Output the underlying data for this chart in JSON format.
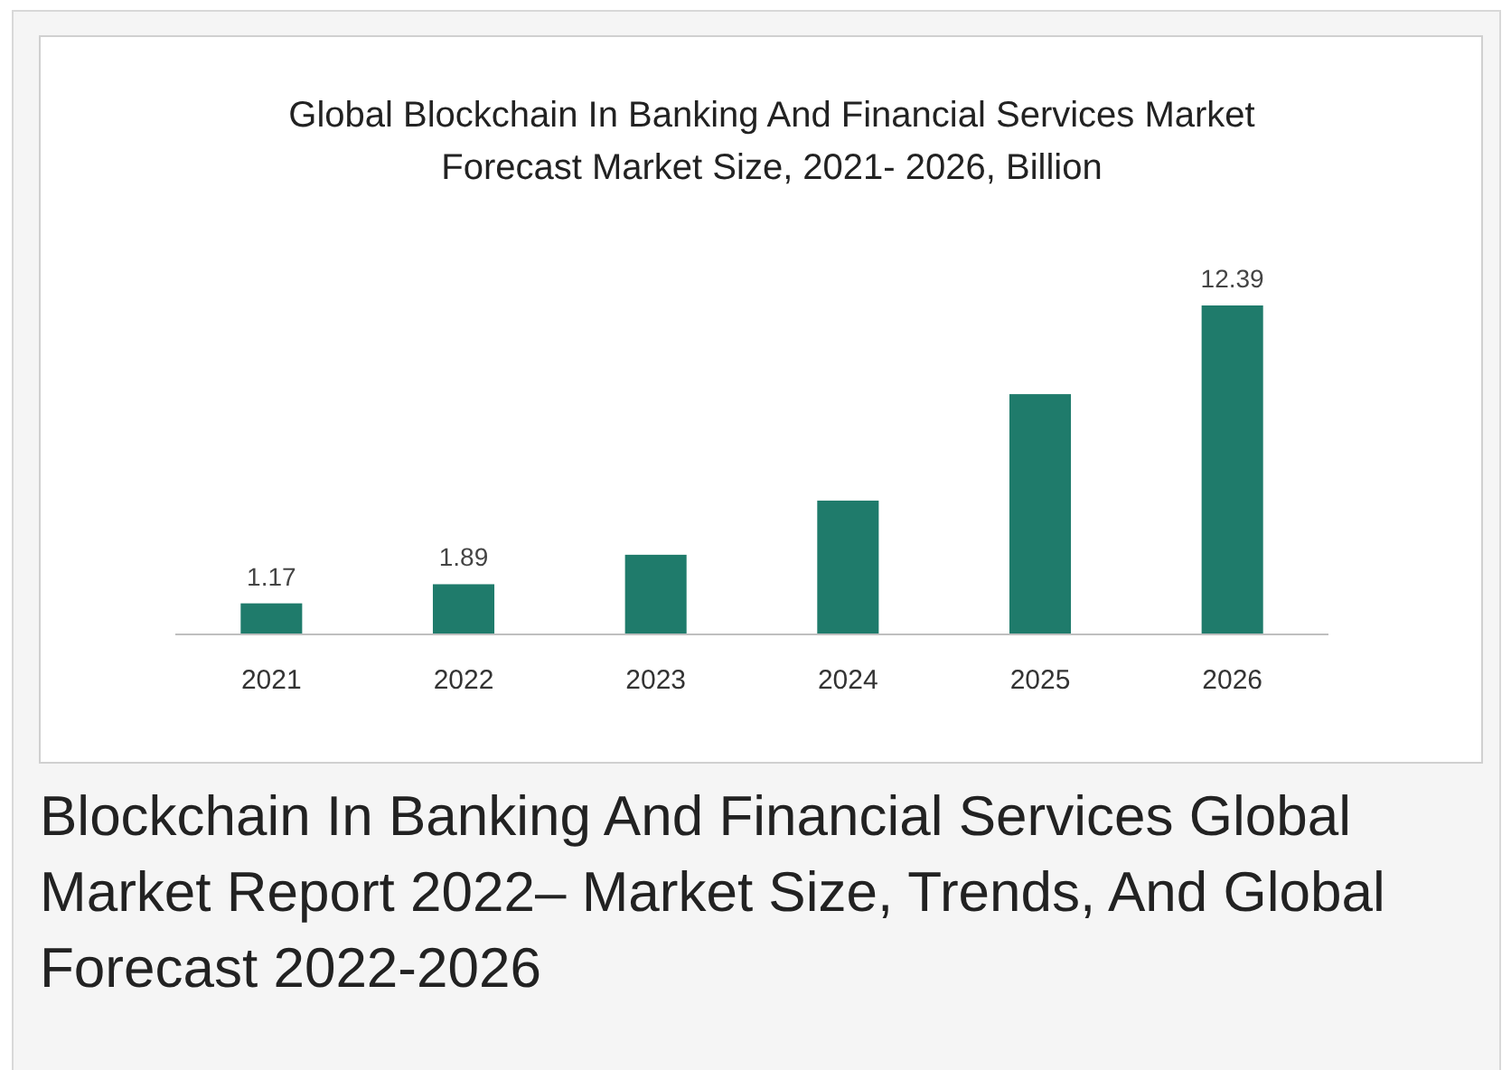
{
  "chart_data": {
    "type": "bar",
    "title": "Global Blockchain In Banking And Financial Services Market Forecast Market Size, 2021- 2026, Billion",
    "categories": [
      "2021",
      "2022",
      "2023",
      "2024",
      "2025",
      "2026"
    ],
    "values": [
      1.17,
      1.89,
      3.0,
      5.04,
      9.05,
      12.39
    ],
    "value_labels": [
      "1.17",
      "1.89",
      null,
      null,
      null,
      "12.39"
    ],
    "color": "#1f7b6b",
    "grid": false,
    "annotations": [
      "Blockchain In Banking And Financial Services Global Market Report 2022– Market Size, Trends, And Global Forecast 2022-2026"
    ]
  }
}
